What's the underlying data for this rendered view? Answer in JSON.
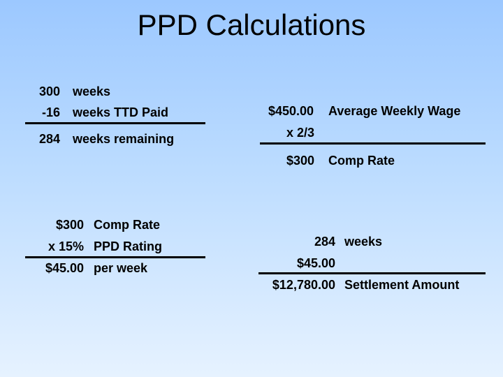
{
  "slide": {
    "title": "PPD Calculations",
    "weeks_calc": {
      "total_num": "300",
      "total_label": "weeks",
      "ttd_num": "-16",
      "ttd_label": "weeks TTD Paid",
      "remaining_num": "284",
      "remaining_label": "weeks remaining"
    },
    "comp_rate_calc": {
      "wage_num": "$450.00",
      "wage_label": "Average Weekly Wage",
      "multiplier": "x 2/3",
      "rate_num": "$300",
      "rate_label": "Comp Rate"
    },
    "ppd_calc": {
      "rate_num": "$300",
      "rate_label": "Comp Rate",
      "rating_num": "x 15%",
      "rating_label": "PPD Rating",
      "result_num": "$45.00",
      "result_label": "per week"
    },
    "settlement_calc": {
      "weeks_num": "284",
      "weeks_label": "weeks",
      "weekly_num": "$45.00",
      "total_num": "$12,780.00",
      "total_label": "Settlement Amount"
    }
  }
}
